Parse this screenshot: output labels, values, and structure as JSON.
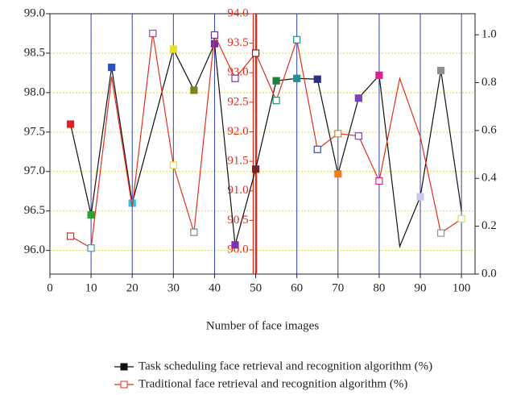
{
  "chart_data": {
    "type": "line",
    "x_label": "Number of face images",
    "xlim": [
      0,
      103.3
    ],
    "xticks": [
      0,
      10,
      20,
      30,
      40,
      50,
      60,
      70,
      80,
      90,
      100
    ],
    "ylim": [
      95.7,
      99.0
    ],
    "yticks": [
      {
        "value": 96,
        "label": "96.0"
      },
      {
        "value": 96.5,
        "label": "96.5"
      },
      {
        "value": 97,
        "label": "97.0"
      },
      {
        "value": 97.5,
        "label": "97.5"
      },
      {
        "value": 98,
        "label": "98.0"
      },
      {
        "value": 98.5,
        "label": "98.5"
      },
      {
        "value": 99,
        "label": "99.0"
      }
    ],
    "y2lim": [
      0,
      1.088
    ],
    "y2ticks": [
      {
        "value": 0,
        "label": "0.0"
      },
      {
        "value": 0.2,
        "label": "0.2"
      },
      {
        "value": 0.4,
        "label": "0.4"
      },
      {
        "value": 0.6,
        "label": "0.6"
      },
      {
        "value": 0.8,
        "label": "0.8"
      },
      {
        "value": 1,
        "label": "1.0"
      }
    ],
    "y3lim": [
      89.59,
      94.0
    ],
    "y3ticks": [
      {
        "value": 90,
        "label": "90.0"
      },
      {
        "value": 90.5,
        "label": "90.5"
      },
      {
        "value": 91,
        "label": "91.0"
      },
      {
        "value": 91.5,
        "label": "91.5"
      },
      {
        "value": 92,
        "label": "92.0"
      },
      {
        "value": 92.5,
        "label": "92.5"
      },
      {
        "value": 93,
        "label": "93.0"
      },
      {
        "value": 93.5,
        "label": "93.5"
      },
      {
        "value": 94,
        "label": "94.0"
      }
    ],
    "y3_position": 50,
    "y3_color": "#e03020",
    "grid": true,
    "series": [
      {
        "name": "Task scheduling face retrieval and recognition algorithm (%)",
        "color": "#111111",
        "x": [
          5,
          10,
          15,
          20,
          30,
          35,
          40,
          45,
          50,
          55,
          60,
          65,
          70,
          75,
          80,
          85,
          90,
          95,
          100
        ],
        "values": [
          97.6,
          96.45,
          98.32,
          96.6,
          98.55,
          98.03,
          98.62,
          96.07,
          97.03,
          98.15,
          98.18,
          98.17,
          96.97,
          97.93,
          98.22,
          96.05,
          96.68,
          98.28,
          96.5
        ],
        "marker_colors": [
          "#e02020",
          "#30a030",
          "#3050c0",
          "#30c0e0",
          "#e8e020",
          "#808020",
          "#7030a0",
          "#8030b0",
          "#802020",
          "#208040",
          "#209090",
          "#303080",
          "#f08010",
          "#8040c0",
          "#e02090",
          null,
          "#c8c8e8",
          "#909090",
          null
        ],
        "filled": true
      },
      {
        "name": "Traditional face retrieval and recognition algorithm (%)",
        "color": "#e03020",
        "x": [
          5,
          10,
          15,
          20,
          25,
          30,
          35,
          40,
          45,
          50,
          55,
          60,
          65,
          70,
          75,
          80,
          85,
          90,
          95,
          100
        ],
        "values": [
          96.18,
          96.03,
          98.2,
          96.55,
          98.75,
          97.08,
          96.23,
          98.73,
          98.18,
          98.5,
          97.9,
          98.67,
          97.28,
          97.48,
          97.45,
          96.88,
          98.18,
          97.44,
          96.22,
          96.4
        ],
        "marker_colors": [
          "#e02020",
          "#30a0c0",
          null,
          null,
          "#c030c0",
          "#e8e020",
          "#808080",
          "#7030a0",
          "#8030b0",
          "#802020",
          "#209080",
          "#209090",
          "#3050c0",
          "#f08010",
          "#8040c0",
          "#e02090",
          null,
          null,
          "#909090",
          "#e8e020"
        ],
        "filled": false
      }
    ]
  }
}
